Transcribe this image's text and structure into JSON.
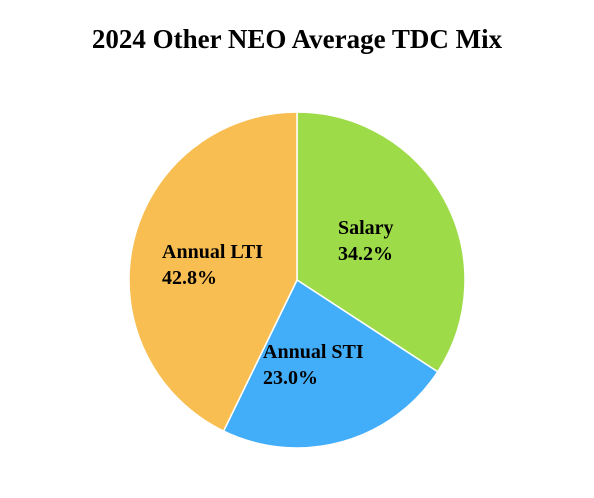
{
  "chart_data": {
    "type": "pie",
    "title": "2024 Other NEO Average TDC Mix",
    "slices": [
      {
        "label": "Salary",
        "value": 34.2,
        "value_label": "34.2%",
        "color": "#9ddb49"
      },
      {
        "label": "Annual STI",
        "value": 23.0,
        "value_label": "23.0%",
        "color": "#42adf9"
      },
      {
        "label": "Annual LTI",
        "value": 42.8,
        "value_label": "42.8%",
        "color": "#f9be52"
      }
    ],
    "start_angle": "12 o'clock",
    "direction": "clockwise",
    "legend": "none"
  }
}
